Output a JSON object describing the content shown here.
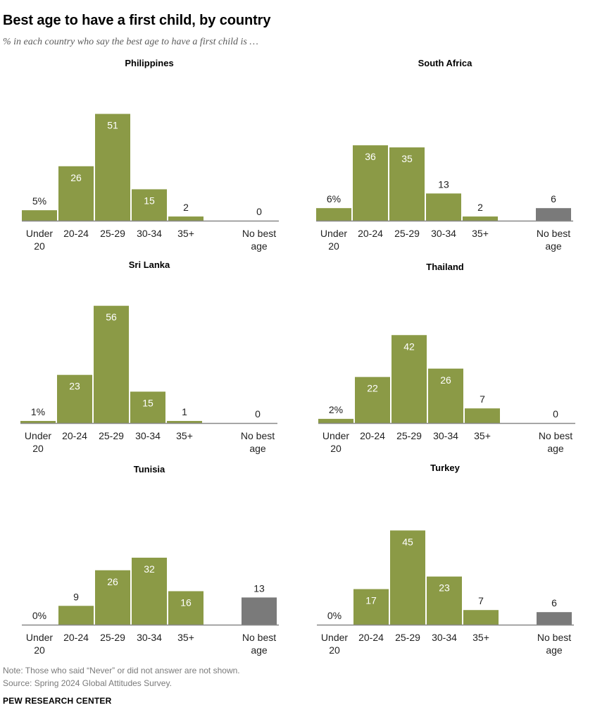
{
  "header": {
    "title": "Best age to have a first child, by country",
    "subtitle": "% in each country who say the best age to have a first child is …"
  },
  "footer": {
    "note": "Note: Those who said “Never” or did not answer are not shown.",
    "source": "Source: Spring 2024 Global Attitudes Survey.",
    "brand": "PEW RESEARCH CENTER"
  },
  "colors": {
    "bar": "#8b9a46",
    "no_best_age_bar": "#7a7a7a",
    "axis": "#888888",
    "label_inside": "#ffffff",
    "label_outside": "#222222"
  },
  "chart_data": [
    {
      "type": "bar",
      "title": "Philippines",
      "categories": [
        [
          "Under",
          "20"
        ],
        [
          "20-24"
        ],
        [
          "25-29"
        ],
        [
          "30-34"
        ],
        [
          "35+"
        ],
        [
          "No best",
          "age"
        ]
      ],
      "values": [
        5,
        26,
        51,
        15,
        2,
        0
      ],
      "labels": [
        "5%",
        "26",
        "51",
        "15",
        "2",
        "0"
      ],
      "ylim": [
        0,
        100
      ]
    },
    {
      "type": "bar",
      "title": "South Africa",
      "categories": [
        [
          "Under",
          "20"
        ],
        [
          "20-24"
        ],
        [
          "25-29"
        ],
        [
          "30-34"
        ],
        [
          "35+"
        ],
        [
          "No best",
          "age"
        ]
      ],
      "values": [
        6,
        36,
        35,
        13,
        2,
        6
      ],
      "labels": [
        "6%",
        "36",
        "35",
        "13",
        "2",
        "6"
      ],
      "ylim": [
        0,
        100
      ]
    },
    {
      "type": "bar",
      "title": "Sri Lanka",
      "categories": [
        [
          "Under",
          "20"
        ],
        [
          "20-24"
        ],
        [
          "25-29"
        ],
        [
          "30-34"
        ],
        [
          "35+"
        ],
        [
          "No best",
          "age"
        ]
      ],
      "values": [
        1,
        23,
        56,
        15,
        1,
        0
      ],
      "labels": [
        "1%",
        "23",
        "56",
        "15",
        "1",
        "0"
      ],
      "ylim": [
        0,
        100
      ]
    },
    {
      "type": "bar",
      "title": "Thailand",
      "categories": [
        [
          "Under",
          "20"
        ],
        [
          "20-24"
        ],
        [
          "25-29"
        ],
        [
          "30-34"
        ],
        [
          "35+"
        ],
        [
          "No best",
          "age"
        ]
      ],
      "values": [
        2,
        22,
        42,
        26,
        7,
        0
      ],
      "labels": [
        "2%",
        "22",
        "42",
        "26",
        "7",
        "0"
      ],
      "ylim": [
        0,
        100
      ]
    },
    {
      "type": "bar",
      "title": "Tunisia",
      "categories": [
        [
          "Under",
          "20"
        ],
        [
          "20-24"
        ],
        [
          "25-29"
        ],
        [
          "30-34"
        ],
        [
          "35+"
        ],
        [
          "No best",
          "age"
        ]
      ],
      "values": [
        0,
        9,
        26,
        32,
        16,
        13
      ],
      "labels": [
        "0%",
        "9",
        "26",
        "32",
        "16",
        "13"
      ],
      "ylim": [
        0,
        100
      ]
    },
    {
      "type": "bar",
      "title": "Turkey",
      "categories": [
        [
          "Under",
          "20"
        ],
        [
          "20-24"
        ],
        [
          "25-29"
        ],
        [
          "30-34"
        ],
        [
          "35+"
        ],
        [
          "No best",
          "age"
        ]
      ],
      "values": [
        0,
        17,
        45,
        23,
        7,
        6
      ],
      "labels": [
        "0%",
        "17",
        "45",
        "23",
        "7",
        "6"
      ],
      "ylim": [
        0,
        100
      ]
    }
  ]
}
